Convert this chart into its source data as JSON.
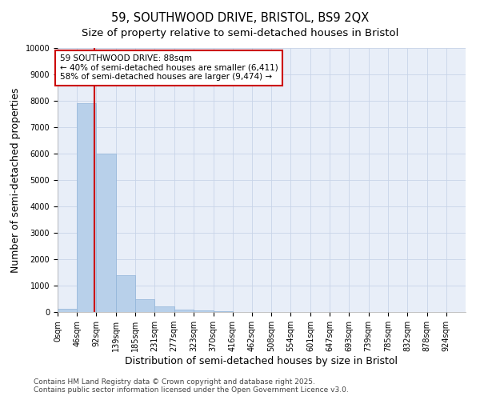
{
  "title_line1": "59, SOUTHWOOD DRIVE, BRISTOL, BS9 2QX",
  "title_line2": "Size of property relative to semi-detached houses in Bristol",
  "xlabel": "Distribution of semi-detached houses by size in Bristol",
  "ylabel": "Number of semi-detached properties",
  "bin_edges": [
    0,
    46,
    92,
    139,
    185,
    231,
    277,
    323,
    370,
    416,
    462,
    508,
    554,
    601,
    647,
    693,
    739,
    785,
    832,
    878,
    924,
    970
  ],
  "bin_labels": [
    "0sqm",
    "46sqm",
    "92sqm",
    "139sqm",
    "185sqm",
    "231sqm",
    "277sqm",
    "323sqm",
    "370sqm",
    "416sqm",
    "462sqm",
    "508sqm",
    "554sqm",
    "601sqm",
    "647sqm",
    "693sqm",
    "739sqm",
    "785sqm",
    "832sqm",
    "878sqm",
    "924sqm"
  ],
  "bar_heights": [
    130,
    7900,
    6000,
    1400,
    500,
    220,
    100,
    50,
    30,
    10,
    5,
    5,
    0,
    0,
    0,
    0,
    0,
    0,
    0,
    0,
    0
  ],
  "bar_color": "#b8d0ea",
  "bar_edge_color": "#90b4d8",
  "property_size": 88,
  "property_line_color": "#cc0000",
  "annotation_box_color": "#cc0000",
  "annotation_text": "59 SOUTHWOOD DRIVE: 88sqm\n← 40% of semi-detached houses are smaller (6,411)\n58% of semi-detached houses are larger (9,474) →",
  "ylim": [
    0,
    10000
  ],
  "yticks": [
    0,
    1000,
    2000,
    3000,
    4000,
    5000,
    6000,
    7000,
    8000,
    9000,
    10000
  ],
  "grid_color": "#c8d4e8",
  "plot_bg_color": "#e8eef8",
  "fig_bg_color": "#ffffff",
  "footer_text": "Contains HM Land Registry data © Crown copyright and database right 2025.\nContains public sector information licensed under the Open Government Licence v3.0.",
  "title_fontsize": 10.5,
  "subtitle_fontsize": 9.5,
  "axis_label_fontsize": 9,
  "tick_fontsize": 7,
  "annotation_fontsize": 7.5,
  "footer_fontsize": 6.5
}
